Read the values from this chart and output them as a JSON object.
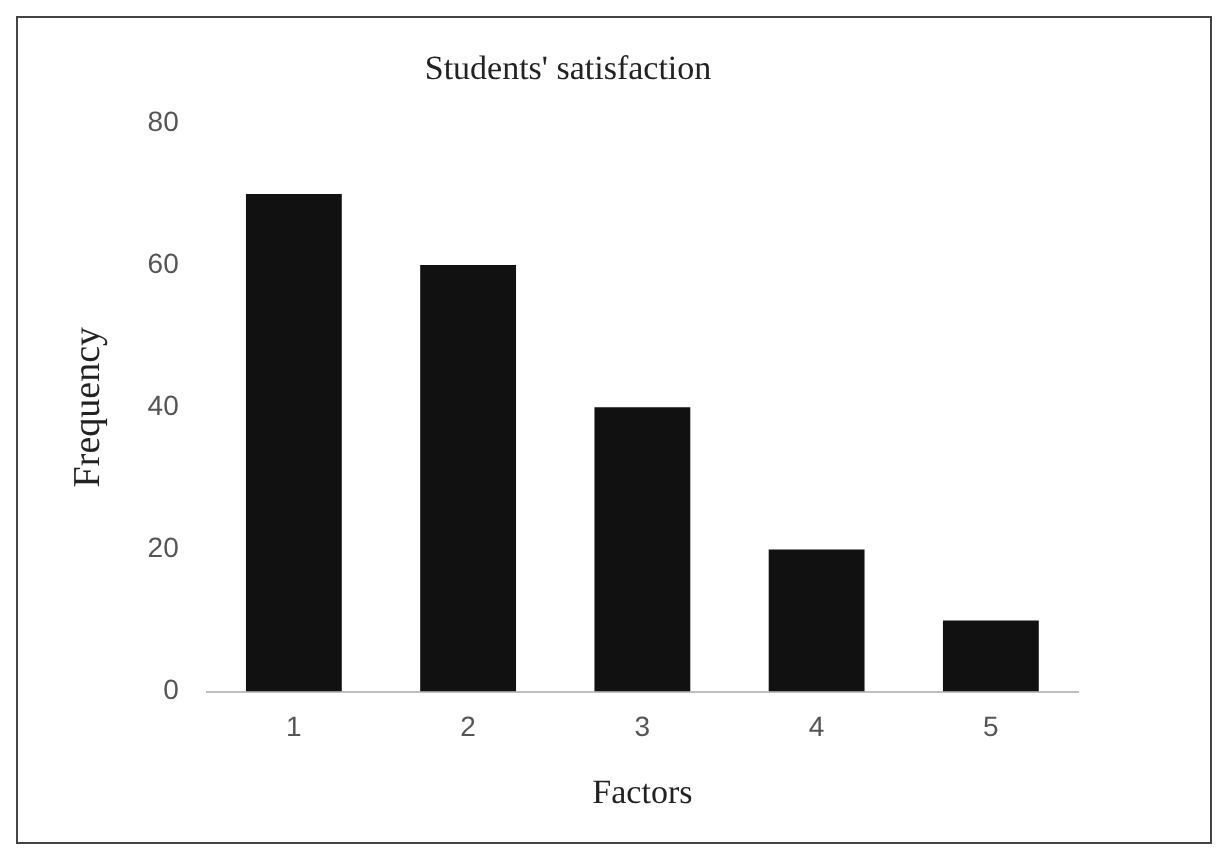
{
  "chart_data": {
    "type": "bar",
    "title": "Students' satisfaction",
    "xlabel": "Factors",
    "ylabel": "Frequency",
    "categories": [
      "1",
      "2",
      "3",
      "4",
      "5"
    ],
    "values": [
      70,
      60,
      40,
      20,
      10
    ],
    "color": "#111111",
    "ylim": [
      0,
      80
    ],
    "yticks": [
      0,
      20,
      40,
      60,
      80
    ],
    "grid": false,
    "legend": false
  }
}
